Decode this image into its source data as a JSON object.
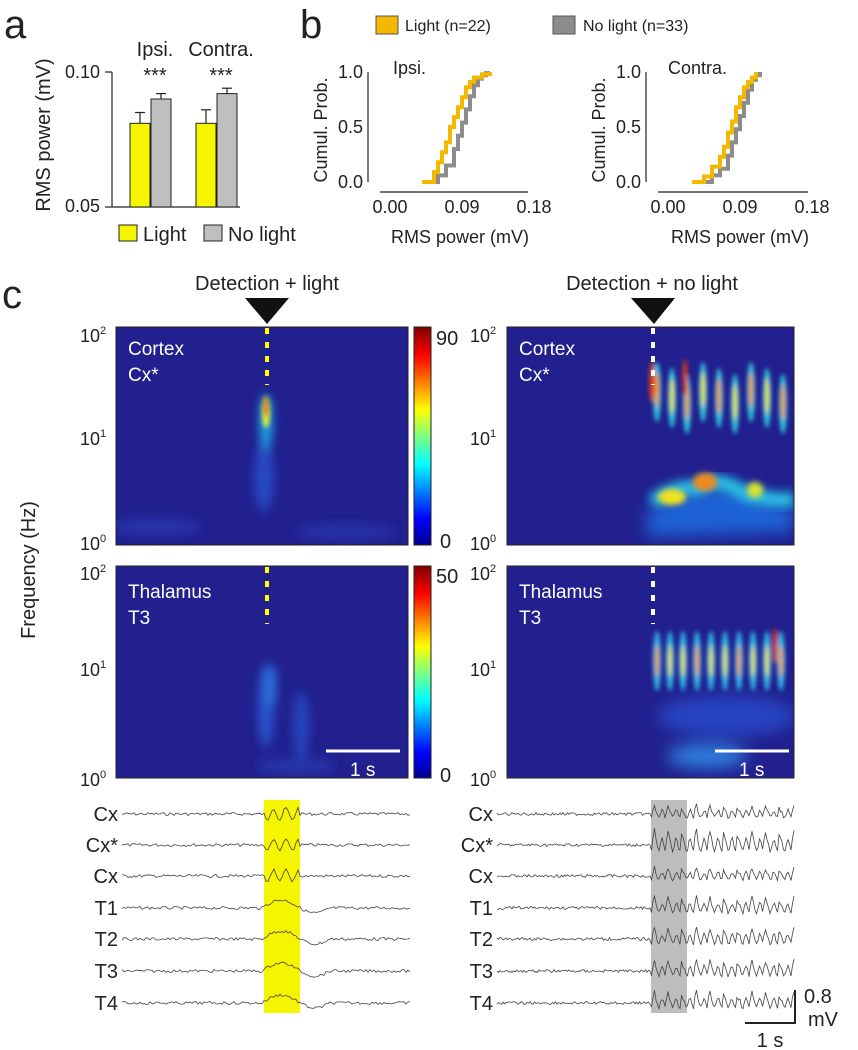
{
  "panel_labels": {
    "a": "a",
    "b": "b",
    "c": "c"
  },
  "panel_a": {
    "ylabel": "RMS power (mV)",
    "y_ticks": [
      "0.10",
      "0.05"
    ],
    "groups": [
      "Ipsi.",
      "Contra."
    ],
    "significance": [
      "***",
      "***"
    ],
    "legend": [
      "Light",
      "No light"
    ],
    "colors": {
      "light": "#f5f500",
      "nolight": "#bfbfbf"
    },
    "chart_data": {
      "type": "bar",
      "categories": [
        "Ipsi.",
        "Contra."
      ],
      "series": [
        {
          "name": "Light",
          "values": [
            0.081,
            0.081
          ],
          "errors": [
            0.004,
            0.005
          ]
        },
        {
          "name": "No light",
          "values": [
            0.09,
            0.092
          ],
          "errors": [
            0.002,
            0.002
          ]
        }
      ],
      "ylabel": "RMS power (mV)",
      "ylim": [
        0.05,
        0.1
      ]
    }
  },
  "panel_b": {
    "legend": [
      "Light (n=22)",
      "No light (n=33)"
    ],
    "colors": {
      "light": "#f4b800",
      "nolight": "#8c8c8c"
    },
    "plots": [
      {
        "title": "Ipsi.",
        "ylabel": "Cumul. Prob.",
        "xlabel": "RMS power (mV)",
        "x_ticks": [
          "0.00",
          "0.09",
          "0.18"
        ],
        "y_ticks": [
          "1.0",
          "0.5",
          "0.0"
        ]
      },
      {
        "title": "Contra.",
        "ylabel": "Cumul. Prob.",
        "xlabel": "RMS power (mV)",
        "x_ticks": [
          "0.00",
          "0.09",
          "0.18"
        ],
        "y_ticks": [
          "1.0",
          "0.5",
          "0.0"
        ]
      }
    ],
    "chart_data": [
      {
        "type": "line",
        "title": "Ipsi.",
        "xlim": [
          0.0,
          0.18
        ],
        "ylim": [
          0,
          1
        ],
        "series": [
          {
            "name": "Light (n=22)",
            "x": [
              0.04,
              0.055,
              0.06,
              0.065,
              0.07,
              0.075,
              0.08,
              0.085,
              0.09,
              0.095,
              0.1,
              0.105,
              0.115,
              0.125
            ],
            "y": [
              0.0,
              0.09,
              0.18,
              0.27,
              0.36,
              0.5,
              0.59,
              0.68,
              0.77,
              0.86,
              0.91,
              0.95,
              0.98,
              1.0
            ]
          },
          {
            "name": "No light (n=33)",
            "x": [
              0.045,
              0.06,
              0.07,
              0.08,
              0.085,
              0.09,
              0.095,
              0.1,
              0.105,
              0.11,
              0.115,
              0.12,
              0.125
            ],
            "y": [
              0.0,
              0.06,
              0.15,
              0.3,
              0.42,
              0.54,
              0.66,
              0.78,
              0.88,
              0.94,
              0.97,
              0.99,
              1.0
            ]
          }
        ]
      },
      {
        "type": "line",
        "title": "Contra.",
        "xlim": [
          0.0,
          0.18
        ],
        "ylim": [
          0,
          1
        ],
        "series": [
          {
            "name": "Light (n=22)",
            "x": [
              0.03,
              0.045,
              0.055,
              0.065,
              0.07,
              0.075,
              0.08,
              0.085,
              0.09,
              0.095,
              0.1,
              0.105,
              0.11
            ],
            "y": [
              0.0,
              0.05,
              0.14,
              0.23,
              0.32,
              0.45,
              0.55,
              0.68,
              0.77,
              0.86,
              0.91,
              0.95,
              1.0
            ]
          },
          {
            "name": "No light (n=33)",
            "x": [
              0.04,
              0.055,
              0.065,
              0.075,
              0.08,
              0.085,
              0.09,
              0.095,
              0.1,
              0.105,
              0.11,
              0.115
            ],
            "y": [
              0.0,
              0.06,
              0.12,
              0.24,
              0.36,
              0.48,
              0.6,
              0.72,
              0.84,
              0.93,
              0.97,
              1.0
            ]
          }
        ]
      }
    ]
  },
  "panel_c": {
    "titles": [
      "Detection + light",
      "Detection + no light"
    ],
    "ylabel": "Frequency (Hz)",
    "freq_ticks": [
      "10",
      "10",
      "10"
    ],
    "freq_exps": [
      "2",
      "1",
      "0"
    ],
    "region_labels": {
      "cortex": [
        "Cortex",
        "Cx*"
      ],
      "thalamus": [
        "Thalamus",
        "T3"
      ]
    },
    "colorbar_cortex": [
      "90",
      "0"
    ],
    "colorbar_thalamus": [
      "50",
      "0"
    ],
    "scalebar": "1 s",
    "trace_labels": [
      "Cx",
      "Cx*",
      "Cx",
      "T1",
      "T2",
      "T3",
      "T4"
    ],
    "amplitude_scale": [
      "0.8",
      "mV"
    ],
    "time_scale": "1 s",
    "colors": {
      "highlight_light": "#f5f500",
      "highlight_nolight": "#bdbdbd",
      "marker_light": "#ffff00",
      "marker_nolight": "#ffffff",
      "spectrogram_bg": "#21208e"
    }
  }
}
